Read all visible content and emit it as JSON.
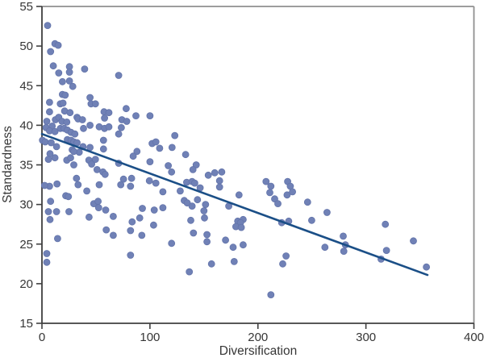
{
  "chart_data": {
    "type": "scatter",
    "title": "",
    "xlabel": "Diversification",
    "ylabel": "Standardness",
    "xlim": [
      0,
      400
    ],
    "ylim": [
      15,
      55
    ],
    "xticks": [
      0,
      100,
      200,
      300,
      400
    ],
    "yticks": [
      15,
      20,
      25,
      30,
      35,
      40,
      45,
      50,
      55
    ],
    "grid": false,
    "legend": null,
    "colors": {
      "point_fill": "#7081b6",
      "point_edge": "#6374aa",
      "trend_line": "#1b4f87",
      "axis_line": "#3f3f3f",
      "frame_line": "#8f8f8f",
      "text": "#363636"
    },
    "point_radius": 4,
    "points": [
      [
        5.2,
        52.6
      ],
      [
        12,
        50.3
      ],
      [
        15,
        50.1
      ],
      [
        8,
        49.3
      ],
      [
        10.5,
        47.5
      ],
      [
        25.5,
        47.4
      ],
      [
        15.5,
        46.6
      ],
      [
        25.5,
        46.7
      ],
      [
        39.5,
        47.1
      ],
      [
        19,
        45.5
      ],
      [
        25.5,
        45.6
      ],
      [
        71,
        46.3
      ],
      [
        28.5,
        44.9
      ],
      [
        19,
        43.9
      ],
      [
        21.5,
        43.8
      ],
      [
        7,
        42.9
      ],
      [
        17,
        42.7
      ],
      [
        19.5,
        42.8
      ],
      [
        44.5,
        43.5
      ],
      [
        45.5,
        42.7
      ],
      [
        49.5,
        42.7
      ],
      [
        78,
        42.1
      ],
      [
        7,
        41.7
      ],
      [
        21,
        41.8
      ],
      [
        26,
        41.6
      ],
      [
        32.5,
        41
      ],
      [
        57.5,
        41.7
      ],
      [
        62,
        41.6
      ],
      [
        87,
        41.2
      ],
      [
        100,
        41.2
      ],
      [
        4.5,
        40.5
      ],
      [
        9.5,
        39.9
      ],
      [
        12.5,
        40.7
      ],
      [
        15.5,
        41
      ],
      [
        18.5,
        40.5
      ],
      [
        23,
        40.4
      ],
      [
        33.5,
        40.8
      ],
      [
        37.5,
        40.7
      ],
      [
        53,
        39.8
      ],
      [
        58,
        40.9
      ],
      [
        74,
        40.7
      ],
      [
        78.5,
        40.5
      ],
      [
        3.7,
        39.7
      ],
      [
        7,
        39.3
      ],
      [
        12,
        39.2
      ],
      [
        17,
        39.6
      ],
      [
        20.5,
        39.6
      ],
      [
        23.5,
        39.4
      ],
      [
        27,
        39.1
      ],
      [
        30.5,
        38.9
      ],
      [
        38.5,
        39.6
      ],
      [
        44.5,
        40
      ],
      [
        58,
        39.6
      ],
      [
        62,
        39.8
      ],
      [
        73.5,
        39.7
      ],
      [
        71,
        38.9
      ],
      [
        123,
        38.7
      ],
      [
        0.5,
        38.1
      ],
      [
        3,
        37.9
      ],
      [
        8.5,
        37.8
      ],
      [
        23.5,
        38.2
      ],
      [
        27,
        38.1
      ],
      [
        29.5,
        37.9
      ],
      [
        32.5,
        37.8
      ],
      [
        13.5,
        37.3
      ],
      [
        38,
        37.3
      ],
      [
        44.5,
        37.2
      ],
      [
        34.5,
        36.6
      ],
      [
        7.5,
        36.4
      ],
      [
        12,
        35.9
      ],
      [
        28,
        36.9
      ],
      [
        29.5,
        36.7
      ],
      [
        57,
        38.1
      ],
      [
        57,
        37
      ],
      [
        88,
        36.7
      ],
      [
        102,
        37.7
      ],
      [
        105.5,
        37.9
      ],
      [
        109,
        37.1
      ],
      [
        120.5,
        37.2
      ],
      [
        133,
        36.3
      ],
      [
        6,
        35.7
      ],
      [
        23,
        35.6
      ],
      [
        26.5,
        35.9
      ],
      [
        43.5,
        35.6
      ],
      [
        46,
        35.1
      ],
      [
        49.5,
        35.7
      ],
      [
        29.5,
        35
      ],
      [
        51,
        34.4
      ],
      [
        71,
        35.2
      ],
      [
        84.5,
        36.1
      ],
      [
        100,
        35.4
      ],
      [
        117,
        34.9
      ],
      [
        120,
        34.1
      ],
      [
        142.8,
        35
      ],
      [
        139.8,
        34.4
      ],
      [
        56.5,
        34.1
      ],
      [
        58.5,
        33.8
      ],
      [
        32,
        33.3
      ],
      [
        33.5,
        32.5
      ],
      [
        14,
        32.6
      ],
      [
        7,
        32.3
      ],
      [
        2.5,
        32.4
      ],
      [
        75.5,
        33.2
      ],
      [
        83,
        33.3
      ],
      [
        154,
        33.7
      ],
      [
        160,
        34
      ],
      [
        166.5,
        34.1
      ],
      [
        22,
        31.1
      ],
      [
        24.5,
        31
      ],
      [
        41.5,
        31.7
      ],
      [
        53,
        32.5
      ],
      [
        73,
        32.5
      ],
      [
        82,
        32.3
      ],
      [
        99.5,
        33
      ],
      [
        105.5,
        32.7
      ],
      [
        112,
        31.6
      ],
      [
        128,
        31.7
      ],
      [
        131.8,
        30.5
      ],
      [
        134,
        32.8
      ],
      [
        139,
        32.9
      ],
      [
        141.5,
        32.7
      ],
      [
        146.5,
        32.1
      ],
      [
        164.5,
        33
      ],
      [
        164.5,
        32.2
      ],
      [
        182.5,
        31.2
      ],
      [
        8,
        30.4
      ],
      [
        48,
        30.1
      ],
      [
        52,
        30.4
      ],
      [
        52.5,
        29.6
      ],
      [
        59,
        29.3
      ],
      [
        6,
        29.1
      ],
      [
        13.5,
        29.1
      ],
      [
        25,
        29.1
      ],
      [
        43.6,
        28.4
      ],
      [
        66,
        28.5
      ],
      [
        7.5,
        28.1
      ],
      [
        83.5,
        27.8
      ],
      [
        90.5,
        28.3
      ],
      [
        93,
        29.5
      ],
      [
        104,
        29.3
      ],
      [
        112,
        29.6
      ],
      [
        103.4,
        27.4
      ],
      [
        134.5,
        30.2
      ],
      [
        139,
        29.8
      ],
      [
        144,
        30.6
      ],
      [
        151.5,
        30
      ],
      [
        150,
        29.2
      ],
      [
        150.5,
        28.3
      ],
      [
        173,
        29.8
      ],
      [
        207.5,
        32.9
      ],
      [
        212,
        32.3
      ],
      [
        211,
        31.5
      ],
      [
        215.5,
        30.7
      ],
      [
        218.5,
        30.1
      ],
      [
        227.5,
        32.9
      ],
      [
        230,
        32.3
      ],
      [
        227,
        31.2
      ],
      [
        232,
        31.6
      ],
      [
        246,
        30.3
      ],
      [
        264,
        29
      ],
      [
        137.8,
        28
      ],
      [
        181.3,
        27.9
      ],
      [
        186.3,
        28.1
      ],
      [
        183.8,
        27.7
      ],
      [
        179.6,
        27.2
      ],
      [
        184.6,
        27.1
      ],
      [
        140.3,
        26.4
      ],
      [
        152.8,
        26.2
      ],
      [
        152.8,
        25.3
      ],
      [
        170,
        25.5
      ],
      [
        177,
        24.6
      ],
      [
        186.3,
        24.9
      ],
      [
        178,
        22.8
      ],
      [
        157,
        22.5
      ],
      [
        136.5,
        21.5
      ],
      [
        212,
        18.6
      ],
      [
        222,
        27.7
      ],
      [
        228.5,
        27.9
      ],
      [
        249.8,
        28
      ],
      [
        226,
        23.5
      ],
      [
        223,
        22.5
      ],
      [
        262,
        24.6
      ],
      [
        59.5,
        26.8
      ],
      [
        66,
        26.1
      ],
      [
        82,
        26.7
      ],
      [
        92.5,
        26.1
      ],
      [
        14.5,
        25.7
      ],
      [
        120,
        25.1
      ],
      [
        4.5,
        23.8
      ],
      [
        82,
        23.6
      ],
      [
        4.5,
        22.7
      ],
      [
        318,
        27.5
      ],
      [
        279,
        26
      ],
      [
        281,
        24.9
      ],
      [
        279.5,
        24.1
      ],
      [
        344,
        25.4
      ],
      [
        319,
        24.2
      ],
      [
        314,
        23.1
      ],
      [
        356,
        22.1
      ]
    ],
    "trend_line": {
      "x1": 0,
      "y1": 38.9,
      "x2": 357,
      "y2": 21.1
    }
  }
}
